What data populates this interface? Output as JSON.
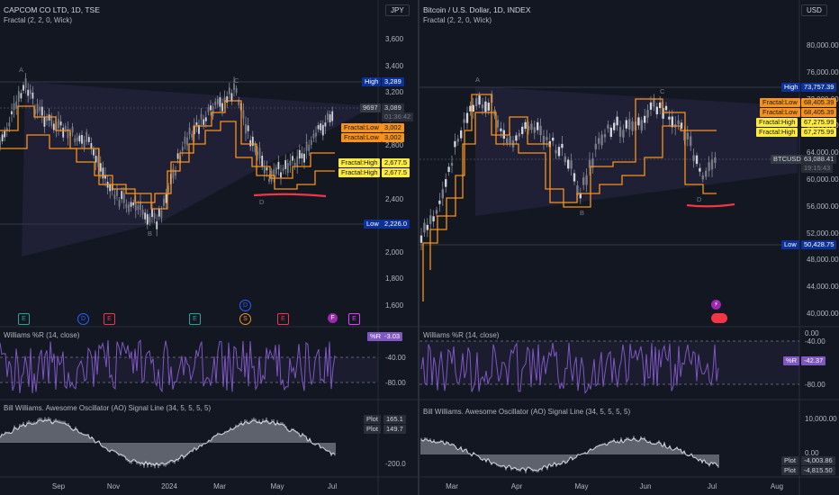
{
  "left": {
    "title": "CAPCOM CO LTD, 1D, TSE",
    "indicator": "Fractal (2, 2, 0, Wick)",
    "currency": "JPY",
    "price_ticks": [
      "3,600",
      "3,400",
      "3,200",
      "3,000",
      "2,800",
      "2,600",
      "2,400",
      "2,200",
      "2,000",
      "1,800",
      "1,600"
    ],
    "time_ticks": [
      "Sep",
      "Nov",
      "2024",
      "Mar",
      "May",
      "Jul"
    ],
    "high_tag": {
      "label": "High",
      "value": "3,289"
    },
    "low_tag": {
      "label": "Low",
      "value": "2,226.0"
    },
    "symbol_tag": "9697",
    "price_tag": "3,089",
    "countdown": "01:36:42",
    "fractal_tags": [
      {
        "label": "Fractal:Low",
        "value": "3,002",
        "style": "orange"
      },
      {
        "label": "Fractal:Low",
        "value": "3,002",
        "style": "orange"
      },
      {
        "label": "Fractal:High",
        "value": "2,677.5",
        "style": "yellow"
      },
      {
        "label": "Fractal:High",
        "value": "2,677.5",
        "style": "yellow"
      }
    ],
    "pattern_labels": [
      "A",
      "B",
      "C",
      "D"
    ],
    "events": [
      "E",
      "D",
      "E",
      "E",
      "D",
      "S",
      "E",
      "F",
      "E"
    ],
    "wr": {
      "title": "Williams %R (14, close)",
      "ticks": [
        "-40.00",
        "-80.00"
      ],
      "tag_label": "%R",
      "tag_value": "-3.03"
    },
    "ao": {
      "title": "Bill Williams. Awesome Oscillator (AO) Signal Line (34, 5, 5, 5, 5)",
      "ticks": [
        "-200.0"
      ],
      "tags": [
        {
          "label": "Plot",
          "value": "165.1"
        },
        {
          "label": "Plot",
          "value": "149.7"
        }
      ]
    }
  },
  "right": {
    "title": "Bitcoin / U.S. Dollar, 1D, INDEX",
    "indicator": "Fractal (2, 2, 0, Wick)",
    "currency": "USD",
    "price_ticks": [
      "80,000.00",
      "76,000.00",
      "72,000.00",
      "68,000.00",
      "64,000.00",
      "60,000.00",
      "56,000.00",
      "52,000.00",
      "48,000.00",
      "44,000.00",
      "40,000.00"
    ],
    "time_ticks": [
      "Mar",
      "Apr",
      "May",
      "Jun",
      "Jul",
      "Aug"
    ],
    "high_tag": {
      "label": "High",
      "value": "73,757.39"
    },
    "low_tag": {
      "label": "Low",
      "value": "50,428.75"
    },
    "symbol_tag": "BTCUSD",
    "price_tag": "63,088.41",
    "countdown": "19:15:43",
    "fractal_tags": [
      {
        "label": "Fractal:Low",
        "value": "68,405.39",
        "style": "orange"
      },
      {
        "label": "Fractal:Low",
        "value": "68,405.39",
        "style": "orange"
      },
      {
        "label": "Fractal:High",
        "value": "67,275.99",
        "style": "yellow"
      },
      {
        "label": "Fractal:High",
        "value": "67,275.99",
        "style": "yellow"
      }
    ],
    "pattern_labels": [
      "A",
      "B",
      "C",
      "D"
    ],
    "wr": {
      "title": "Williams %R (14, close)",
      "ticks": [
        "0.00",
        "-40.00",
        "-80.00"
      ],
      "tag_label": "%R",
      "tag_value": "-42.37"
    },
    "ao": {
      "title": "Bill Williams. Awesome Oscillator (AO) Signal Line (34, 5, 5, 5, 5)",
      "ticks": [
        "10,000.00",
        "0.00"
      ],
      "tags": [
        {
          "label": "Plot",
          "value": "-4,003.86"
        },
        {
          "label": "Plot",
          "value": "-4,815.50"
        }
      ]
    }
  },
  "colors": {
    "background": "#131722",
    "fractal_line": "#f7931a",
    "triangle": "#7e57c2",
    "annotation": "#f23645",
    "wr_line": "#7e57c2"
  }
}
